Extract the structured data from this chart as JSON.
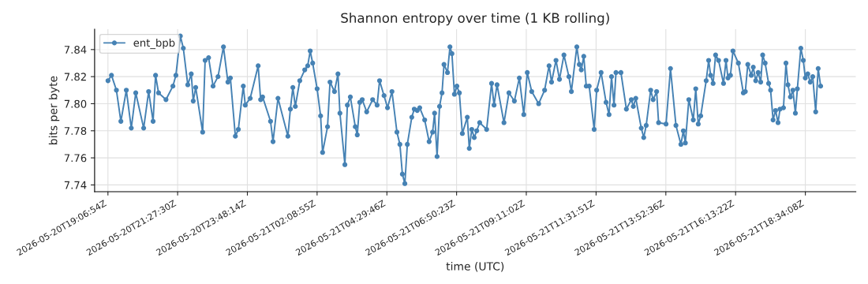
{
  "chart_data": {
    "type": "line",
    "title": "Shannon entropy over time (1 KB rolling)",
    "xlabel": "time (UTC)",
    "ylabel": "bits per byte",
    "x": [
      "2026-05-20T19:07",
      "2026-05-20T19:14",
      "2026-05-20T19:24",
      "2026-05-20T19:33",
      "2026-05-20T19:44",
      "2026-05-20T19:54",
      "2026-05-20T20:03",
      "2026-05-20T20:19",
      "2026-05-20T20:29",
      "2026-05-20T20:38",
      "2026-05-20T20:43",
      "2026-05-20T20:49",
      "2026-05-20T21:04",
      "2026-05-20T21:18",
      "2026-05-20T21:24",
      "2026-05-20T21:33",
      "2026-05-20T21:39",
      "2026-05-20T21:48",
      "2026-05-20T21:55",
      "2026-05-20T21:59",
      "2026-05-20T22:04",
      "2026-05-20T22:18",
      "2026-05-20T22:23",
      "2026-05-20T22:30",
      "2026-05-20T22:39",
      "2026-05-20T22:49",
      "2026-05-20T23:00",
      "2026-05-20T23:09",
      "2026-05-20T23:14",
      "2026-05-20T23:24",
      "2026-05-20T23:30",
      "2026-05-20T23:40",
      "2026-05-20T23:44",
      "2026-05-20T23:54",
      "2026-05-21T00:10",
      "2026-05-21T00:15",
      "2026-05-21T00:19",
      "2026-05-21T00:35",
      "2026-05-21T00:40",
      "2026-05-21T00:50",
      "2026-05-21T01:10",
      "2026-05-21T01:15",
      "2026-05-21T01:20",
      "2026-05-21T01:25",
      "2026-05-21T01:34",
      "2026-05-21T01:44",
      "2026-05-21T01:50",
      "2026-05-21T01:55",
      "2026-05-21T02:00",
      "2026-05-21T02:09",
      "2026-05-21T02:16",
      "2026-05-21T02:20",
      "2026-05-21T02:30",
      "2026-05-21T02:35",
      "2026-05-21T02:44",
      "2026-05-21T02:51",
      "2026-05-21T02:55",
      "2026-05-21T03:05",
      "2026-05-21T03:10",
      "2026-05-21T03:16",
      "2026-05-21T03:26",
      "2026-05-21T03:30",
      "2026-05-21T03:35",
      "2026-05-21T03:40",
      "2026-05-21T03:49",
      "2026-05-21T04:01",
      "2026-05-21T04:10",
      "2026-05-21T04:15",
      "2026-05-21T04:24",
      "2026-05-21T04:31",
      "2026-05-21T04:40",
      "2026-05-21T04:50",
      "2026-05-21T04:56",
      "2026-05-21T05:01",
      "2026-05-21T05:06",
      "2026-05-21T05:11",
      "2026-05-21T05:20",
      "2026-05-21T05:25",
      "2026-05-21T05:31",
      "2026-05-21T05:36",
      "2026-05-21T05:46",
      "2026-05-21T05:55",
      "2026-05-21T06:02",
      "2026-05-21T06:06",
      "2026-05-21T06:11",
      "2026-05-21T06:16",
      "2026-05-21T06:21",
      "2026-05-21T06:25",
      "2026-05-21T06:32",
      "2026-05-21T06:37",
      "2026-05-21T06:41",
      "2026-05-21T06:46",
      "2026-05-21T06:51",
      "2026-05-21T06:56",
      "2026-05-21T07:02",
      "2026-05-21T07:12",
      "2026-05-21T07:16",
      "2026-05-21T07:21",
      "2026-05-21T07:26",
      "2026-05-21T07:31",
      "2026-05-21T07:37",
      "2026-05-21T07:51",
      "2026-05-21T08:01",
      "2026-05-21T08:06",
      "2026-05-21T08:12",
      "2026-05-21T08:26",
      "2026-05-21T08:36",
      "2026-05-21T08:47",
      "2026-05-21T08:57",
      "2026-05-21T09:06",
      "2026-05-21T09:13",
      "2026-05-21T09:22",
      "2026-05-21T09:36",
      "2026-05-21T09:48",
      "2026-05-21T09:57",
      "2026-05-21T10:02",
      "2026-05-21T10:11",
      "2026-05-21T10:18",
      "2026-05-21T10:27",
      "2026-05-21T10:37",
      "2026-05-21T10:42",
      "2026-05-21T10:53",
      "2026-05-21T10:58",
      "2026-05-21T11:02",
      "2026-05-21T11:07",
      "2026-05-21T11:12",
      "2026-05-21T11:18",
      "2026-05-21T11:28",
      "2026-05-21T11:33",
      "2026-05-21T11:42",
      "2026-05-21T11:52",
      "2026-05-21T11:58",
      "2026-05-21T12:03",
      "2026-05-21T12:08",
      "2026-05-21T12:12",
      "2026-05-21T12:22",
      "2026-05-21T12:33",
      "2026-05-21T12:43",
      "2026-05-21T12:47",
      "2026-05-21T12:52",
      "2026-05-21T13:03",
      "2026-05-21T13:08",
      "2026-05-21T13:13",
      "2026-05-21T13:22",
      "2026-05-21T13:27",
      "2026-05-21T13:34",
      "2026-05-21T13:38",
      "2026-05-21T13:53",
      "2026-05-21T14:02",
      "2026-05-21T14:13",
      "2026-05-21T14:23",
      "2026-05-21T14:28",
      "2026-05-21T14:32",
      "2026-05-21T14:39",
      "2026-05-21T14:48",
      "2026-05-21T14:53",
      "2026-05-21T14:58",
      "2026-05-21T15:03",
      "2026-05-21T15:14",
      "2026-05-21T15:19",
      "2026-05-21T15:23",
      "2026-05-21T15:28",
      "2026-05-21T15:33",
      "2026-05-21T15:39",
      "2026-05-21T15:49",
      "2026-05-21T15:54",
      "2026-05-21T15:58",
      "2026-05-21T16:03",
      "2026-05-21T16:08",
      "2026-05-21T16:19",
      "2026-05-21T16:29",
      "2026-05-21T16:33",
      "2026-05-21T16:38",
      "2026-05-21T16:45",
      "2026-05-21T16:49",
      "2026-05-21T16:54",
      "2026-05-21T16:59",
      "2026-05-21T17:04",
      "2026-05-21T17:08",
      "2026-05-21T17:13",
      "2026-05-21T17:20",
      "2026-05-21T17:24",
      "2026-05-21T17:29",
      "2026-05-21T17:34",
      "2026-05-21T17:39",
      "2026-05-21T17:43",
      "2026-05-21T17:50",
      "2026-05-21T17:55",
      "2026-05-21T17:59",
      "2026-05-21T18:04",
      "2026-05-21T18:09",
      "2026-05-21T18:14",
      "2026-05-21T18:18",
      "2026-05-21T18:25",
      "2026-05-21T18:30",
      "2026-05-21T18:34",
      "2026-05-21T18:39",
      "2026-05-21T18:44",
      "2026-05-21T18:49",
      "2026-05-21T18:55",
      "2026-05-21T19:00",
      "2026-05-21T19:05"
    ],
    "series": [
      {
        "name": "ent_bpb",
        "color": "#4682b4",
        "values": [
          7.817,
          7.821,
          7.81,
          7.787,
          7.81,
          7.782,
          7.808,
          7.782,
          7.809,
          7.787,
          7.821,
          7.808,
          7.803,
          7.813,
          7.821,
          7.85,
          7.841,
          7.814,
          7.822,
          7.802,
          7.812,
          7.779,
          7.832,
          7.834,
          7.813,
          7.82,
          7.842,
          7.816,
          7.819,
          7.776,
          7.781,
          7.813,
          7.799,
          7.804,
          7.828,
          7.803,
          7.805,
          7.787,
          7.772,
          7.804,
          7.776,
          7.796,
          7.812,
          7.798,
          7.817,
          7.825,
          7.828,
          7.839,
          7.83,
          7.811,
          7.791,
          7.764,
          7.783,
          7.816,
          7.809,
          7.822,
          7.793,
          7.755,
          7.799,
          7.805,
          7.783,
          7.777,
          7.801,
          7.803,
          7.794,
          7.803,
          7.799,
          7.817,
          7.806,
          7.797,
          7.809,
          7.779,
          7.77,
          7.748,
          7.741,
          7.77,
          7.79,
          7.796,
          7.795,
          7.797,
          7.788,
          7.772,
          7.779,
          7.793,
          7.761,
          7.798,
          7.808,
          7.829,
          7.823,
          7.842,
          7.837,
          7.807,
          7.813,
          7.808,
          7.778,
          7.79,
          7.767,
          7.781,
          7.775,
          7.78,
          7.786,
          7.781,
          7.815,
          7.799,
          7.814,
          7.786,
          7.808,
          7.802,
          7.819,
          7.792,
          7.823,
          7.809,
          7.8,
          7.81,
          7.828,
          7.816,
          7.832,
          7.818,
          7.836,
          7.82,
          7.809,
          7.842,
          7.829,
          7.825,
          7.835,
          7.813,
          7.813,
          7.781,
          7.81,
          7.823,
          7.801,
          7.792,
          7.82,
          7.799,
          7.823,
          7.823,
          7.796,
          7.803,
          7.798,
          7.804,
          7.782,
          7.775,
          7.784,
          7.81,
          7.803,
          7.809,
          7.786,
          7.785,
          7.826,
          7.784,
          7.77,
          7.78,
          7.771,
          7.803,
          7.788,
          7.811,
          7.785,
          7.791,
          7.817,
          7.832,
          7.821,
          7.815,
          7.836,
          7.832,
          7.815,
          7.832,
          7.819,
          7.821,
          7.839,
          7.83,
          7.808,
          7.809,
          7.829,
          7.821,
          7.827,
          7.817,
          7.823,
          7.816,
          7.836,
          7.83,
          7.815,
          7.81,
          7.788,
          7.795,
          7.786,
          7.796,
          7.797,
          7.83,
          7.814,
          7.805,
          7.81,
          7.793,
          7.811,
          7.841,
          7.832,
          7.819,
          7.822,
          7.816,
          7.82,
          7.794,
          7.826,
          7.813
        ]
      }
    ],
    "xlim": [
      "2026-05-20T18:40",
      "2026-05-21T20:16"
    ],
    "ylim": [
      7.735,
      7.855
    ],
    "xticks": [
      {
        "value": "2026-05-20T19:06:54",
        "label": "2026-05-20T19:06:54Z"
      },
      {
        "value": "2026-05-20T21:27:30",
        "label": "2026-05-20T21:27:30Z"
      },
      {
        "value": "2026-05-20T23:48:14",
        "label": "2026-05-20T23:48:14Z"
      },
      {
        "value": "2026-05-21T02:08:55",
        "label": "2026-05-21T02:08:55Z"
      },
      {
        "value": "2026-05-21T04:29:46",
        "label": "2026-05-21T04:29:46Z"
      },
      {
        "value": "2026-05-21T06:50:23",
        "label": "2026-05-21T06:50:23Z"
      },
      {
        "value": "2026-05-21T09:11:02",
        "label": "2026-05-21T09:11:02Z"
      },
      {
        "value": "2026-05-21T11:31:51",
        "label": "2026-05-21T11:31:51Z"
      },
      {
        "value": "2026-05-21T13:52:36",
        "label": "2026-05-21T13:52:36Z"
      },
      {
        "value": "2026-05-21T16:13:22",
        "label": "2026-05-21T16:13:22Z"
      },
      {
        "value": "2026-05-21T18:34:08",
        "label": "2026-05-21T18:34:08Z"
      }
    ],
    "yticks": [
      7.74,
      7.76,
      7.78,
      {
        "value": 7.8,
        "label": "7.80"
      },
      7.82,
      7.84
    ],
    "grid": true,
    "legend": "top left",
    "marker": "circle",
    "line_style": "solid"
  }
}
